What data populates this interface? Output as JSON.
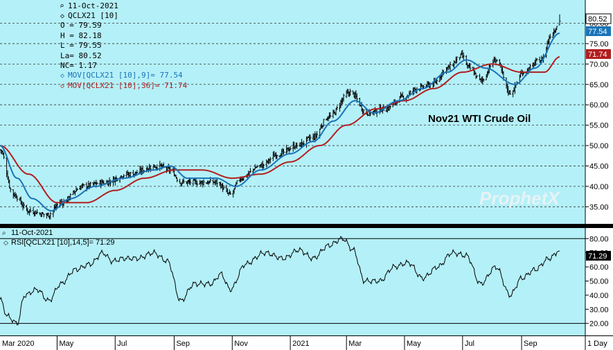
{
  "chart_data": [
    {
      "type": "ohlc",
      "title": "Nov21 WTI Crude Oil",
      "watermark": "ProphetX",
      "info_panel": {
        "date": "11-Oct-2021",
        "symbol": "QCLX21 [10]",
        "open": "O = 79.59",
        "high": "H = 82.18",
        "low": "L = 79.55",
        "last": "La= 80.52",
        "net_change": "NC= 1.17",
        "ma_fast_label": "MOV[QCLX21 [10],9]= 77.54",
        "ma_slow_label": "MOV[QCLX21 [10],36]= 71.74"
      },
      "y_axis": {
        "ticks": [
          "35.00",
          "40.00",
          "45.00",
          "50.00",
          "55.00",
          "60.00",
          "65.00",
          "70.00",
          "75.00",
          "80.00"
        ],
        "range": [
          30.8,
          85.7
        ]
      },
      "price_flags": {
        "last": "80.52",
        "ma_fast": "77.54",
        "ma_slow": "71.74"
      },
      "price_key_points": [
        [
          "2020-03-02",
          49
        ],
        [
          "2020-03-16",
          38
        ],
        [
          "2020-04-01",
          34
        ],
        [
          "2020-04-21",
          33
        ],
        [
          "2020-05-05",
          36
        ],
        [
          "2020-05-28",
          40
        ],
        [
          "2020-06-20",
          41
        ],
        [
          "2020-07-15",
          43
        ],
        [
          "2020-08-15",
          45
        ],
        [
          "2020-08-28",
          44
        ],
        [
          "2020-09-08",
          41
        ],
        [
          "2020-09-25",
          41
        ],
        [
          "2020-10-15",
          41
        ],
        [
          "2020-10-30",
          38
        ],
        [
          "2020-11-10",
          42
        ],
        [
          "2020-11-30",
          45
        ],
        [
          "2020-12-20",
          48
        ],
        [
          "2021-01-08",
          50
        ],
        [
          "2021-01-25",
          52
        ],
        [
          "2021-02-10",
          57
        ],
        [
          "2021-03-05",
          63
        ],
        [
          "2021-03-23",
          58
        ],
        [
          "2021-04-10",
          59
        ],
        [
          "2021-05-01",
          62
        ],
        [
          "2021-05-14",
          64
        ],
        [
          "2021-05-30",
          65
        ],
        [
          "2021-06-15",
          69
        ],
        [
          "2021-06-30",
          72
        ],
        [
          "2021-07-08",
          69
        ],
        [
          "2021-07-20",
          66
        ],
        [
          "2021-08-05",
          71
        ],
        [
          "2021-08-20",
          63
        ],
        [
          "2021-09-03",
          68
        ],
        [
          "2021-09-21",
          71
        ],
        [
          "2021-10-04",
          78
        ],
        [
          "2021-10-11",
          80.52
        ]
      ],
      "ma_fast_key_points": [
        [
          "2020-03-02",
          50
        ],
        [
          "2020-03-20",
          42
        ],
        [
          "2020-04-05",
          37
        ],
        [
          "2020-04-25",
          34
        ],
        [
          "2020-05-15",
          37
        ],
        [
          "2020-06-10",
          40
        ],
        [
          "2020-07-10",
          42
        ],
        [
          "2020-08-10",
          44
        ],
        [
          "2020-08-28",
          45
        ],
        [
          "2020-09-15",
          42
        ],
        [
          "2020-10-15",
          42
        ],
        [
          "2020-11-05",
          40
        ],
        [
          "2020-12-01",
          44
        ],
        [
          "2021-01-01",
          48
        ],
        [
          "2021-01-25",
          51
        ],
        [
          "2021-02-15",
          56
        ],
        [
          "2021-03-10",
          61
        ],
        [
          "2021-03-30",
          58
        ],
        [
          "2021-04-25",
          61
        ],
        [
          "2021-05-20",
          64
        ],
        [
          "2021-06-15",
          68
        ],
        [
          "2021-07-05",
          71
        ],
        [
          "2021-07-25",
          69
        ],
        [
          "2021-08-25",
          65
        ],
        [
          "2021-09-15",
          69
        ],
        [
          "2021-10-11",
          77.54
        ]
      ],
      "ma_slow_key_points": [
        [
          "2020-03-02",
          50
        ],
        [
          "2020-04-01",
          43
        ],
        [
          "2020-05-01",
          36
        ],
        [
          "2020-06-01",
          36
        ],
        [
          "2020-07-01",
          39
        ],
        [
          "2020-08-01",
          42
        ],
        [
          "2020-09-01",
          44
        ],
        [
          "2020-10-01",
          44
        ],
        [
          "2020-11-01",
          42
        ],
        [
          "2020-12-01",
          43
        ],
        [
          "2021-01-01",
          46
        ],
        [
          "2021-02-01",
          50
        ],
        [
          "2021-03-01",
          55
        ],
        [
          "2021-04-01",
          59
        ],
        [
          "2021-05-01",
          61
        ],
        [
          "2021-06-01",
          64
        ],
        [
          "2021-07-01",
          68
        ],
        [
          "2021-08-01",
          70
        ],
        [
          "2021-09-01",
          68
        ],
        [
          "2021-09-25",
          68
        ],
        [
          "2021-10-11",
          71.74
        ]
      ],
      "colors": {
        "background": "#b4f0f8",
        "price": "#000000",
        "ma_fast": "#1a73b8",
        "ma_slow": "#b21e1e",
        "watermark": "#e6f3f6"
      }
    },
    {
      "type": "line",
      "title": "",
      "info_panel": {
        "date": "11-Oct-2021",
        "label": "RSI[QCLX21 [10],14,5]= 71.29"
      },
      "y_axis": {
        "ticks": [
          "20.00",
          "30.00",
          "40.00",
          "50.00",
          "60.00",
          "70.00",
          "80.00"
        ],
        "range": [
          11.5,
          87.5
        ]
      },
      "levels": [
        20,
        80
      ],
      "last_value": "71.29",
      "rsi_key_points": [
        [
          "2020-03-02",
          37
        ],
        [
          "2020-03-10",
          25
        ],
        [
          "2020-03-20",
          20
        ],
        [
          "2020-03-28",
          40
        ],
        [
          "2020-04-10",
          44
        ],
        [
          "2020-04-22",
          36
        ],
        [
          "2020-05-05",
          48
        ],
        [
          "2020-05-20",
          58
        ],
        [
          "2020-06-05",
          62
        ],
        [
          "2020-06-18",
          70
        ],
        [
          "2020-06-28",
          64
        ],
        [
          "2020-07-10",
          66
        ],
        [
          "2020-07-25",
          66
        ],
        [
          "2020-08-10",
          70
        ],
        [
          "2020-08-25",
          64
        ],
        [
          "2020-09-08",
          36
        ],
        [
          "2020-09-22",
          48
        ],
        [
          "2020-10-10",
          48
        ],
        [
          "2020-10-20",
          55
        ],
        [
          "2020-10-30",
          44
        ],
        [
          "2020-11-15",
          62
        ],
        [
          "2020-12-05",
          70
        ],
        [
          "2020-12-25",
          66
        ],
        [
          "2021-01-10",
          72
        ],
        [
          "2021-01-25",
          66
        ],
        [
          "2021-02-10",
          75
        ],
        [
          "2021-02-25",
          80
        ],
        [
          "2021-03-08",
          72
        ],
        [
          "2021-03-20",
          50
        ],
        [
          "2021-04-05",
          50
        ],
        [
          "2021-04-20",
          60
        ],
        [
          "2021-05-05",
          63
        ],
        [
          "2021-05-20",
          52
        ],
        [
          "2021-06-05",
          60
        ],
        [
          "2021-06-20",
          70
        ],
        [
          "2021-07-05",
          68
        ],
        [
          "2021-07-20",
          48
        ],
        [
          "2021-08-05",
          60
        ],
        [
          "2021-08-20",
          40
        ],
        [
          "2021-09-01",
          52
        ],
        [
          "2021-09-15",
          58
        ],
        [
          "2021-09-30",
          66
        ],
        [
          "2021-10-11",
          71.29
        ]
      ],
      "colors": {
        "background": "#b4f0f8",
        "line": "#000000"
      }
    }
  ],
  "x_axis": {
    "labels": [
      {
        "text": "Mar 2020",
        "date": "2020-03-02"
      },
      {
        "text": "May",
        "date": "2020-05-01"
      },
      {
        "text": "Jul",
        "date": "2020-07-01"
      },
      {
        "text": "Sep",
        "date": "2020-09-01"
      },
      {
        "text": "Nov",
        "date": "2020-11-01"
      },
      {
        "text": "2021",
        "date": "2021-01-01"
      },
      {
        "text": "Mar",
        "date": "2021-03-01"
      },
      {
        "text": "May",
        "date": "2021-05-01"
      },
      {
        "text": "Jul",
        "date": "2021-07-01"
      },
      {
        "text": "Sep",
        "date": "2021-09-01"
      }
    ],
    "period_label": "1 Day"
  }
}
